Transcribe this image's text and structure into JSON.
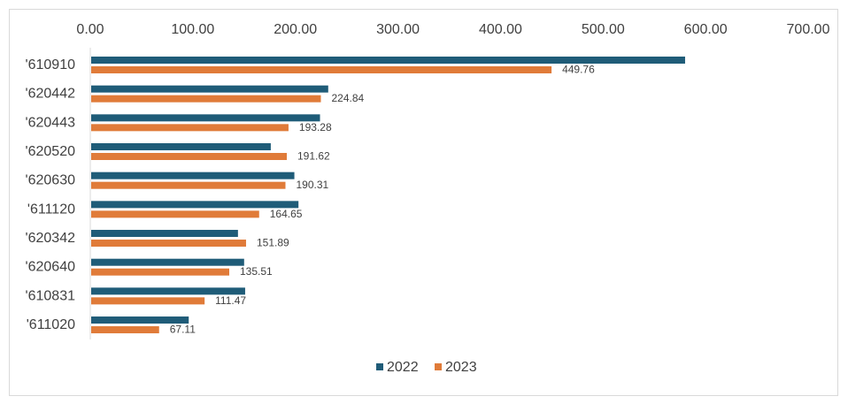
{
  "chart_data": {
    "type": "bar",
    "orientation": "horizontal",
    "title": "",
    "xlabel": "",
    "ylabel": "",
    "xlim": [
      0,
      700
    ],
    "x_ticks": [
      "0.00",
      "100.00",
      "200.00",
      "300.00",
      "400.00",
      "500.00",
      "600.00",
      "700.00"
    ],
    "axis_position": "top",
    "grid": false,
    "legend_position": "bottom",
    "categories": [
      "'610910",
      "'620442",
      "'620443",
      "'620520",
      "'620630",
      "'611120",
      "'620342",
      "'620640",
      "'610831",
      "'611020"
    ],
    "series": [
      {
        "name": "2022",
        "color": "#1f5c78",
        "values": [
          580,
          232,
          224,
          176,
          199,
          203,
          144,
          150,
          151,
          96
        ],
        "show_labels": false
      },
      {
        "name": "2023",
        "color": "#e07b39",
        "values": [
          449.76,
          224.84,
          193.28,
          191.62,
          190.31,
          164.65,
          151.89,
          135.51,
          111.47,
          67.11
        ],
        "labels": [
          "449.76",
          "224.84",
          "193.28",
          "191.62",
          "190.31",
          "164.65",
          "151.89",
          "135.51",
          "111.47",
          "67.11"
        ],
        "show_labels": true
      }
    ]
  }
}
